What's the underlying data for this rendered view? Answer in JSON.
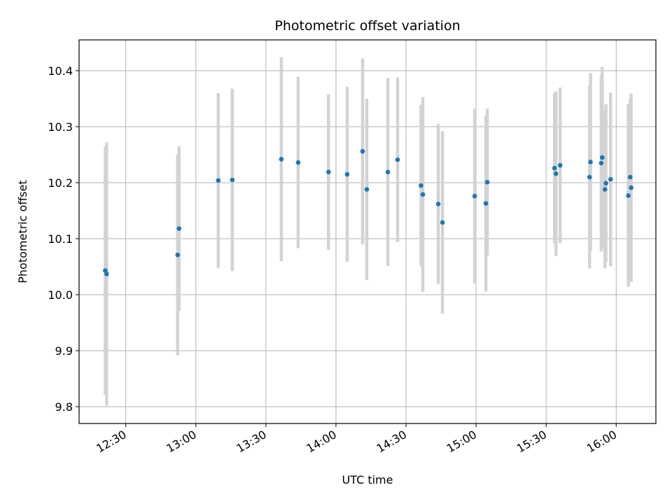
{
  "chart_data": {
    "type": "scatter",
    "title": "Photometric offset variation",
    "xlabel": "UTC time",
    "ylabel": "Photometric offset",
    "xlim": [
      "12:10",
      "16:17"
    ],
    "ylim": [
      9.77,
      10.455
    ],
    "x_ticks": [
      "12:30",
      "13:00",
      "13:30",
      "14:00",
      "14:30",
      "15:00",
      "15:30",
      "16:00"
    ],
    "y_ticks": [
      "9.8",
      "9.9",
      "10.0",
      "10.1",
      "10.2",
      "10.3",
      "10.4"
    ],
    "grid": true,
    "legend": "none",
    "colors": {
      "marker": "#1f77b4",
      "errorbar": "#d3d3d3",
      "grid": "#b0b0b0"
    },
    "series": [
      {
        "points": [
          {
            "x": "12:21:12",
            "y": 10.043,
            "yerr": 0.222
          },
          {
            "x": "12:21:48",
            "y": 10.037,
            "yerr": 0.235
          },
          {
            "x": "12:52:12",
            "y": 10.071,
            "yerr": 0.179
          },
          {
            "x": "12:52:48",
            "y": 10.118,
            "yerr": 0.147
          },
          {
            "x": "13:09:36",
            "y": 10.204,
            "yerr": 0.156
          },
          {
            "x": "13:15:36",
            "y": 10.205,
            "yerr": 0.163
          },
          {
            "x": "13:36:36",
            "y": 10.242,
            "yerr": 0.182
          },
          {
            "x": "13:43:48",
            "y": 10.236,
            "yerr": 0.153
          },
          {
            "x": "13:56:48",
            "y": 10.219,
            "yerr": 0.139
          },
          {
            "x": "14:04:48",
            "y": 10.215,
            "yerr": 0.156
          },
          {
            "x": "14:11:24",
            "y": 10.256,
            "yerr": 0.166
          },
          {
            "x": "14:13:12",
            "y": 10.188,
            "yerr": 0.162
          },
          {
            "x": "14:22:12",
            "y": 10.219,
            "yerr": 0.168
          },
          {
            "x": "14:26:24",
            "y": 10.241,
            "yerr": 0.147
          },
          {
            "x": "14:36:24",
            "y": 10.195,
            "yerr": 0.144
          },
          {
            "x": "14:37:12",
            "y": 10.179,
            "yerr": 0.174
          },
          {
            "x": "14:43:48",
            "y": 10.162,
            "yerr": 0.143
          },
          {
            "x": "14:45:36",
            "y": 10.129,
            "yerr": 0.163
          },
          {
            "x": "14:59:24",
            "y": 10.176,
            "yerr": 0.156
          },
          {
            "x": "15:04:12",
            "y": 10.163,
            "yerr": 0.157
          },
          {
            "x": "15:04:48",
            "y": 10.201,
            "yerr": 0.131
          },
          {
            "x": "15:33:36",
            "y": 10.226,
            "yerr": 0.134
          },
          {
            "x": "15:34:12",
            "y": 10.216,
            "yerr": 0.147
          },
          {
            "x": "15:36:00",
            "y": 10.231,
            "yerr": 0.139
          },
          {
            "x": "15:48:36",
            "y": 10.21,
            "yerr": 0.163
          },
          {
            "x": "15:48:60",
            "y": 10.237,
            "yerr": 0.159
          },
          {
            "x": "15:53:36",
            "y": 10.235,
            "yerr": 0.158
          },
          {
            "x": "15:54:00",
            "y": 10.245,
            "yerr": 0.162
          },
          {
            "x": "15:55:12",
            "y": 10.188,
            "yerr": 0.141
          },
          {
            "x": "15:55:36",
            "y": 10.199,
            "yerr": 0.141
          },
          {
            "x": "15:57:36",
            "y": 10.206,
            "yerr": 0.155
          },
          {
            "x": "16:05:12",
            "y": 10.177,
            "yerr": 0.163
          },
          {
            "x": "16:06:00",
            "y": 10.21,
            "yerr": 0.14
          },
          {
            "x": "16:06:24",
            "y": 10.191,
            "yerr": 0.168
          }
        ]
      }
    ]
  }
}
